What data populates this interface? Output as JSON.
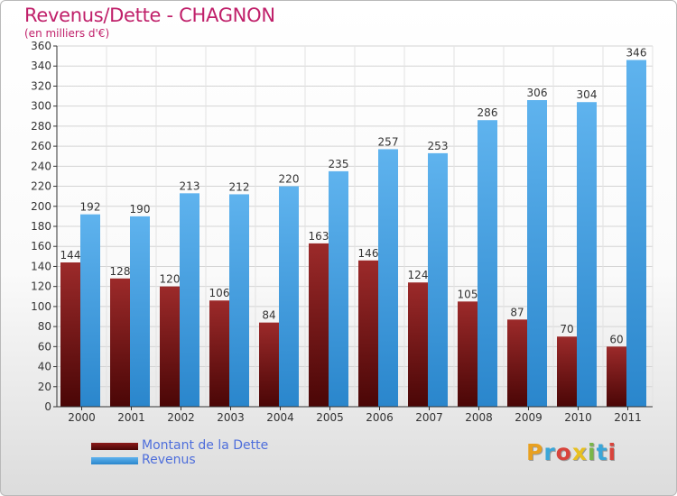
{
  "chart_data": {
    "type": "bar",
    "title": "Revenus/Dette - CHAGNON",
    "subtitle": "(en milliers d'€)",
    "xlabel": "",
    "ylabel": "",
    "ylim": [
      0,
      360
    ],
    "yticks": [
      0,
      20,
      40,
      60,
      80,
      100,
      120,
      140,
      160,
      180,
      200,
      220,
      240,
      260,
      280,
      300,
      320,
      340,
      360
    ],
    "grid": true,
    "categories": [
      "2000",
      "2001",
      "2002",
      "2003",
      "2004",
      "2005",
      "2006",
      "2007",
      "2008",
      "2009",
      "2010",
      "2011"
    ],
    "series": [
      {
        "name": "Montant de la Dette",
        "color": "#8b1a1a",
        "values": [
          144,
          128,
          120,
          106,
          84,
          163,
          146,
          124,
          105,
          87,
          70,
          60
        ]
      },
      {
        "name": "Revenus",
        "color": "#4aa3e6",
        "values": [
          192,
          190,
          213,
          212,
          220,
          235,
          257,
          253,
          286,
          306,
          304,
          346
        ]
      }
    ],
    "legend_position": "bottom-left"
  },
  "logo_text": "Proxiti",
  "logo_colors": [
    "#e8a020",
    "#3aa6d8",
    "#d8443c",
    "#e8c020",
    "#7ab648",
    "#3aa6d8",
    "#d8443c"
  ]
}
